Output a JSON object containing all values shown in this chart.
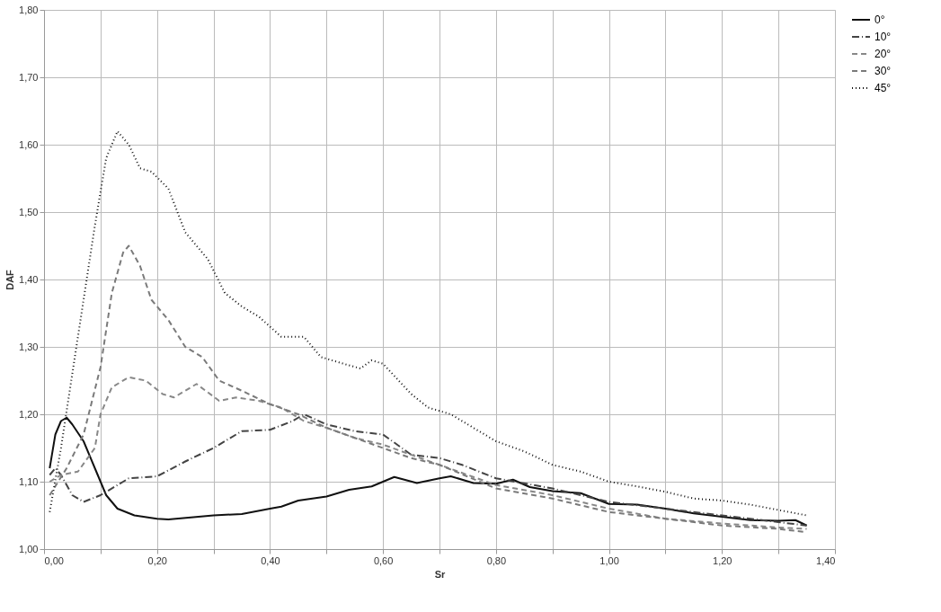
{
  "chart_data": {
    "type": "line",
    "xlabel": "Sr",
    "ylabel": "DAF",
    "xlim": [
      0,
      1.4
    ],
    "ylim": [
      1.0,
      1.8
    ],
    "xticks": [
      {
        "value": 0,
        "label": "0,00"
      },
      {
        "value": 0.1,
        "label": null
      },
      {
        "value": 0.2,
        "label": "0,20"
      },
      {
        "value": 0.3,
        "label": null
      },
      {
        "value": 0.4,
        "label": "0,40"
      },
      {
        "value": 0.5,
        "label": null
      },
      {
        "value": 0.6,
        "label": "0,60"
      },
      {
        "value": 0.7,
        "label": null
      },
      {
        "value": 0.8,
        "label": "0,80"
      },
      {
        "value": 0.9,
        "label": null
      },
      {
        "value": 1.0,
        "label": "1,00"
      },
      {
        "value": 1.1,
        "label": null
      },
      {
        "value": 1.2,
        "label": "1,20"
      },
      {
        "value": 1.3,
        "label": null
      },
      {
        "value": 1.4,
        "label": "1,40"
      }
    ],
    "yticks": [
      {
        "value": 1.0,
        "label": "1,00"
      },
      {
        "value": 1.1,
        "label": "1,10"
      },
      {
        "value": 1.2,
        "label": "1,20"
      },
      {
        "value": 1.3,
        "label": "1,30"
      },
      {
        "value": 1.4,
        "label": "1,40"
      },
      {
        "value": 1.5,
        "label": "1,50"
      },
      {
        "value": 1.6,
        "label": "1,60"
      },
      {
        "value": 1.7,
        "label": "1,70"
      },
      {
        "value": 1.8,
        "label": "1,80"
      }
    ],
    "grid": true,
    "legend": "right",
    "marker": "none",
    "series": [
      {
        "name": "0°",
        "color": "#111111",
        "line_style": "solid",
        "x": [
          0.01,
          0.02,
          0.03,
          0.04,
          0.05,
          0.07,
          0.09,
          0.11,
          0.13,
          0.16,
          0.2,
          0.22,
          0.26,
          0.3,
          0.35,
          0.4,
          0.42,
          0.45,
          0.5,
          0.54,
          0.58,
          0.6,
          0.62,
          0.66,
          0.7,
          0.72,
          0.76,
          0.8,
          0.83,
          0.86,
          0.9,
          0.95,
          1.0,
          1.05,
          1.1,
          1.15,
          1.2,
          1.25,
          1.3,
          1.33,
          1.35
        ],
        "values": [
          1.12,
          1.17,
          1.19,
          1.195,
          1.185,
          1.16,
          1.12,
          1.08,
          1.06,
          1.05,
          1.045,
          1.044,
          1.047,
          1.05,
          1.052,
          1.06,
          1.063,
          1.072,
          1.078,
          1.088,
          1.093,
          1.1,
          1.107,
          1.098,
          1.105,
          1.108,
          1.098,
          1.097,
          1.103,
          1.092,
          1.086,
          1.083,
          1.067,
          1.066,
          1.06,
          1.053,
          1.048,
          1.043,
          1.042,
          1.043,
          1.035
        ]
      },
      {
        "name": "10°",
        "color": "#444444",
        "line_style": "dashdot",
        "x": [
          0.01,
          0.02,
          0.03,
          0.05,
          0.07,
          0.1,
          0.15,
          0.2,
          0.25,
          0.3,
          0.35,
          0.4,
          0.44,
          0.46,
          0.5,
          0.55,
          0.6,
          0.65,
          0.7,
          0.74,
          0.8,
          0.9,
          1.0,
          1.1,
          1.2,
          1.3,
          1.35
        ],
        "values": [
          1.11,
          1.12,
          1.11,
          1.08,
          1.07,
          1.08,
          1.105,
          1.108,
          1.13,
          1.15,
          1.175,
          1.177,
          1.19,
          1.2,
          1.185,
          1.175,
          1.17,
          1.14,
          1.135,
          1.125,
          1.105,
          1.09,
          1.07,
          1.06,
          1.05,
          1.04,
          1.035
        ]
      },
      {
        "name": "20°",
        "color": "#888888",
        "line_style": "dashed",
        "x": [
          0.01,
          0.03,
          0.06,
          0.09,
          0.1,
          0.12,
          0.15,
          0.18,
          0.21,
          0.23,
          0.27,
          0.31,
          0.34,
          0.38,
          0.42,
          0.46,
          0.5,
          0.55,
          0.6,
          0.65,
          0.7,
          0.8,
          0.9,
          1.0,
          1.1,
          1.2,
          1.3,
          1.35
        ],
        "values": [
          1.1,
          1.11,
          1.115,
          1.15,
          1.2,
          1.24,
          1.255,
          1.25,
          1.23,
          1.225,
          1.245,
          1.22,
          1.225,
          1.22,
          1.21,
          1.19,
          1.18,
          1.165,
          1.155,
          1.14,
          1.125,
          1.095,
          1.08,
          1.06,
          1.045,
          1.038,
          1.032,
          1.03
        ]
      },
      {
        "name": "30°",
        "color": "#7a7a7a",
        "line_style": "dashed",
        "x": [
          0.01,
          0.04,
          0.07,
          0.1,
          0.12,
          0.14,
          0.15,
          0.17,
          0.19,
          0.22,
          0.25,
          0.28,
          0.31,
          0.35,
          0.4,
          0.45,
          0.5,
          0.55,
          0.6,
          0.65,
          0.7,
          0.8,
          0.9,
          1.0,
          1.1,
          1.2,
          1.3,
          1.35
        ],
        "values": [
          1.08,
          1.12,
          1.17,
          1.27,
          1.38,
          1.44,
          1.45,
          1.42,
          1.37,
          1.34,
          1.3,
          1.285,
          1.25,
          1.235,
          1.215,
          1.2,
          1.18,
          1.165,
          1.15,
          1.135,
          1.125,
          1.09,
          1.075,
          1.055,
          1.045,
          1.035,
          1.03,
          1.025
        ]
      },
      {
        "name": "45°",
        "color": "#111111",
        "line_style": "dotted",
        "x": [
          0.01,
          0.03,
          0.05,
          0.07,
          0.09,
          0.11,
          0.13,
          0.15,
          0.17,
          0.19,
          0.22,
          0.25,
          0.29,
          0.32,
          0.35,
          0.38,
          0.42,
          0.44,
          0.46,
          0.49,
          0.53,
          0.56,
          0.58,
          0.6,
          0.65,
          0.68,
          0.72,
          0.75,
          0.8,
          0.85,
          0.9,
          0.95,
          1.0,
          1.05,
          1.1,
          1.15,
          1.2,
          1.25,
          1.3,
          1.35
        ],
        "values": [
          1.055,
          1.15,
          1.26,
          1.37,
          1.48,
          1.58,
          1.62,
          1.6,
          1.565,
          1.56,
          1.535,
          1.47,
          1.43,
          1.38,
          1.36,
          1.345,
          1.315,
          1.315,
          1.315,
          1.285,
          1.275,
          1.268,
          1.28,
          1.275,
          1.23,
          1.21,
          1.2,
          1.185,
          1.16,
          1.145,
          1.125,
          1.115,
          1.1,
          1.093,
          1.085,
          1.075,
          1.072,
          1.066,
          1.058,
          1.05
        ]
      }
    ]
  }
}
